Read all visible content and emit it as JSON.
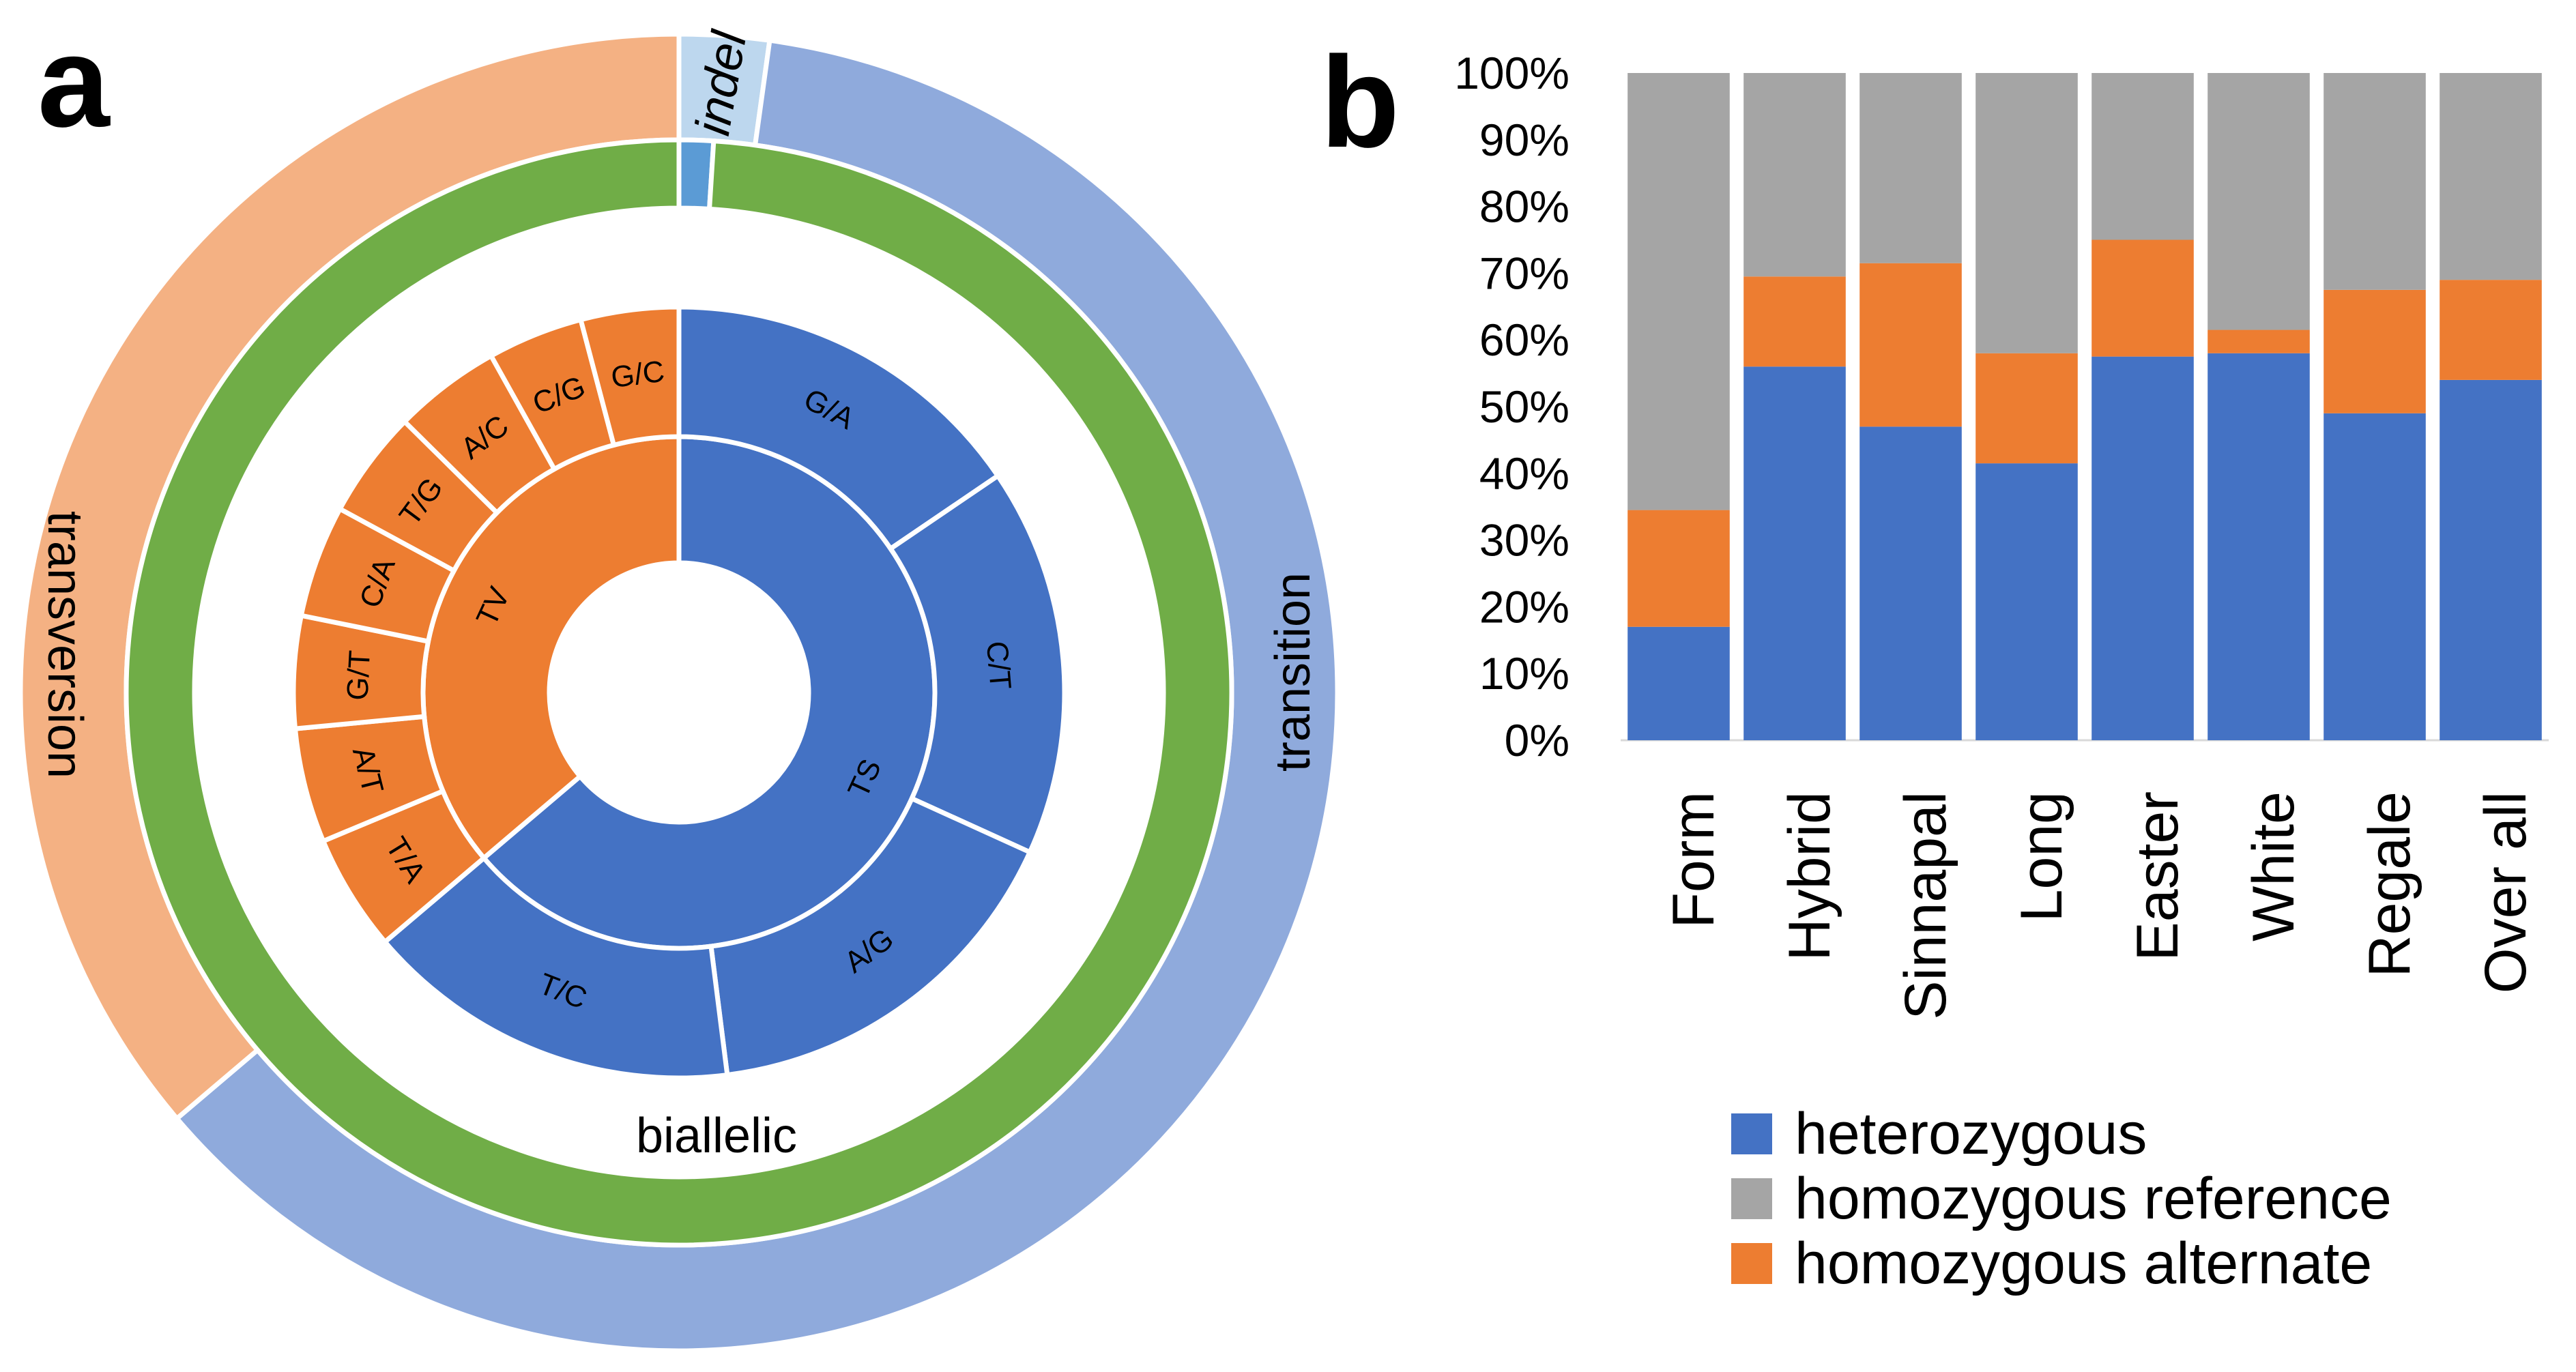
{
  "panels": {
    "a_label": "a",
    "b_label": "b"
  },
  "chart_data": [
    {
      "type": "pie",
      "variant": "sunburst",
      "rings": [
        {
          "name": "outer",
          "slices": [
            {
              "label": "indel",
              "value": 2.2,
              "color": "#BDD7EE"
            },
            {
              "label": "transition",
              "value": 61.6,
              "color": "#8FAADC"
            },
            {
              "label": "transversion",
              "value": 36.2,
              "color": "#F4B183"
            }
          ]
        },
        {
          "name": "middle",
          "slices": [
            {
              "label": "",
              "value": 1.0,
              "color": "#5B9BD5"
            },
            {
              "label": "biallelic",
              "value": 99.0,
              "color": "#70AD47"
            }
          ]
        },
        {
          "name": "inner",
          "slices": [
            {
              "label": "TS",
              "value": 63.8,
              "color": "#4472C4"
            },
            {
              "label": "TV",
              "value": 36.2,
              "color": "#ED7D31"
            }
          ]
        },
        {
          "name": "substitution",
          "slices": [
            {
              "label": "G/A",
              "value": 15.5,
              "color": "#4472C4"
            },
            {
              "label": "C/T",
              "value": 16.3,
              "color": "#4472C4"
            },
            {
              "label": "A/G",
              "value": 16.2,
              "color": "#4472C4"
            },
            {
              "label": "T/C",
              "value": 15.8,
              "color": "#4472C4"
            },
            {
              "label": "T/A",
              "value": 4.9,
              "color": "#ED7D31"
            },
            {
              "label": "A/T",
              "value": 4.8,
              "color": "#ED7D31"
            },
            {
              "label": "G/T",
              "value": 4.7,
              "color": "#ED7D31"
            },
            {
              "label": "C/A",
              "value": 4.7,
              "color": "#ED7D31"
            },
            {
              "label": "T/G",
              "value": 4.5,
              "color": "#ED7D31"
            },
            {
              "label": "A/C",
              "value": 4.5,
              "color": "#ED7D31"
            },
            {
              "label": "C/G",
              "value": 4.0,
              "color": "#ED7D31"
            },
            {
              "label": "G/C",
              "value": 4.1,
              "color": "#ED7D31"
            }
          ]
        }
      ]
    },
    {
      "type": "bar",
      "stacked": true,
      "percent": true,
      "categories": [
        "Form",
        "Hybrid",
        "Sinnapal",
        "Long",
        "Easter",
        "White",
        "Regale",
        "Over all"
      ],
      "series": [
        {
          "name": "heterozygous",
          "color": "#4472C4",
          "values": [
            17,
            56,
            47,
            41.5,
            57.5,
            58,
            49,
            54
          ]
        },
        {
          "name": "homozygous alternate",
          "color": "#ED7D31",
          "values": [
            17.5,
            13.5,
            24.5,
            16.5,
            17.5,
            3.5,
            18.5,
            15
          ]
        },
        {
          "name": "homozygous reference",
          "color": "#A5A5A5",
          "values": [
            65.5,
            30.5,
            28.5,
            42,
            25,
            38.5,
            32.5,
            31
          ]
        }
      ],
      "ylim": [
        0,
        100
      ],
      "yticks": [
        "0%",
        "10%",
        "20%",
        "30%",
        "40%",
        "50%",
        "60%",
        "70%",
        "80%",
        "90%",
        "100%"
      ],
      "legend": {
        "position": "bottom",
        "entries": [
          {
            "label": "heterozygous",
            "color": "#4472C4"
          },
          {
            "label": "homozygous reference",
            "color": "#A5A5A5"
          },
          {
            "label": "homozygous alternate",
            "color": "#ED7D31"
          }
        ]
      },
      "title": "",
      "xlabel": "",
      "ylabel": ""
    }
  ]
}
